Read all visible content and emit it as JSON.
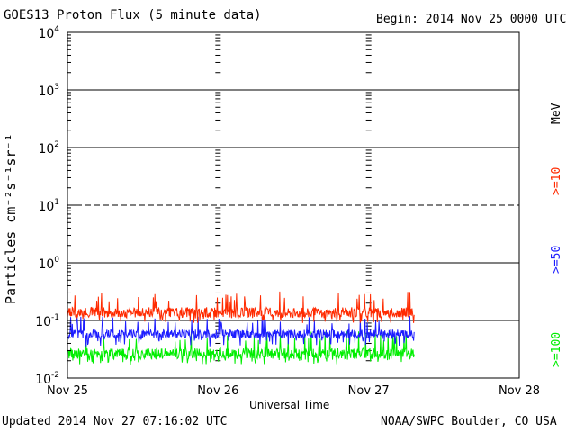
{
  "header": {
    "title": "GOES13 Proton Flux (5 minute data)",
    "begin": "Begin: 2014 Nov 25 0000 UTC"
  },
  "footer": {
    "updated": "Updated 2014 Nov 27 07:16:02 UTC",
    "credit": "NOAA/SWPC Boulder, CO USA"
  },
  "colors": {
    "ge10": "#ff2a00",
    "ge50": "#1c1cff",
    "ge100": "#00ee00",
    "axis": "#000000"
  },
  "chart_data": {
    "type": "line",
    "title": "GOES13 Proton Flux (5 minute data)",
    "xlabel": "Universal Time",
    "ylabel": "Particles cm⁻²s⁻¹sr⁻¹",
    "yscale": "log",
    "ylim": [
      0.01,
      10000
    ],
    "xlim": [
      "2014-11-25 00:00",
      "2014-11-28 00:00"
    ],
    "x_ticks": [
      "Nov 25",
      "Nov 26",
      "Nov 27",
      "Nov 28"
    ],
    "y_ticks": [
      {
        "base": "10",
        "exp": "4"
      },
      {
        "base": "10",
        "exp": "3"
      },
      {
        "base": "10",
        "exp": "2"
      },
      {
        "base": "10",
        "exp": "1"
      },
      {
        "base": "10",
        "exp": "0"
      },
      {
        "base": "10",
        "exp": "-1"
      },
      {
        "base": "10",
        "exp": "-2"
      }
    ],
    "threshold_lines": [
      {
        "value": 10,
        "style": "dashed"
      },
      {
        "value": 0.1,
        "style": "solid"
      }
    ],
    "legend_title": "MeV",
    "series": [
      {
        "name": ">=10",
        "x_start": "2014-11-25 00:00",
        "x_end": "2014-11-27 07:15",
        "typical": 0.13,
        "low": 0.09,
        "high": 0.32
      },
      {
        "name": ">=50",
        "x_start": "2014-11-25 00:00",
        "x_end": "2014-11-27 07:15",
        "typical": 0.055,
        "low": 0.035,
        "high": 0.12
      },
      {
        "name": ">=100",
        "x_start": "2014-11-25 00:00",
        "x_end": "2014-11-27 07:15",
        "typical": 0.025,
        "low": 0.017,
        "high": 0.065
      }
    ]
  }
}
